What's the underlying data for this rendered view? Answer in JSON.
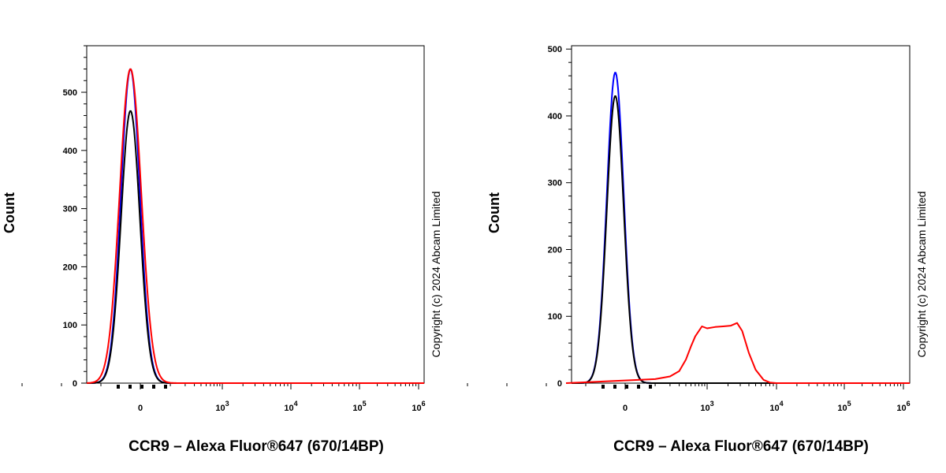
{
  "chart_data": [
    {
      "type": "line",
      "title": "",
      "xlabel": "CCR9 – Alexa Fluor®647 (670/14BP)",
      "ylabel": "Count",
      "x_scale": "biexponential",
      "ylim": [
        0,
        580
      ],
      "y_ticks": [
        0,
        100,
        200,
        300,
        400,
        500
      ],
      "x_ticks": [
        "0",
        "10^3",
        "10^4",
        "10^5",
        "10^6"
      ],
      "grid": false,
      "legend": "none",
      "copyright": "Copyright (c) 2024 Abcam Limited",
      "series": [
        {
          "color": "#0000ff",
          "peak_x": -50,
          "peak_y": 540,
          "width": 0.028
        },
        {
          "color": "#000000",
          "peak_x": -50,
          "peak_y": 468,
          "width": 0.028
        },
        {
          "color": "#ff0000",
          "peak_x": -50,
          "peak_y": 540,
          "width": 0.032
        }
      ]
    },
    {
      "type": "line",
      "title": "",
      "xlabel": "CCR9 – Alexa Fluor®647 (670/14BP)",
      "ylabel": "Count",
      "x_scale": "biexponential",
      "ylim": [
        0,
        505
      ],
      "y_ticks": [
        0,
        100,
        200,
        300,
        400,
        500
      ],
      "x_ticks": [
        "0",
        "10^3",
        "10^4",
        "10^5",
        "10^6"
      ],
      "grid": false,
      "legend": "none",
      "copyright": "Copyright (c) 2024 Abcam Limited",
      "series": [
        {
          "color": "#0000ff",
          "peak_x": -50,
          "peak_y": 465,
          "width": 0.025
        },
        {
          "color": "#000000",
          "peak_x": -50,
          "peak_y": 430,
          "width": 0.025
        },
        {
          "color": "#ff0000",
          "shape": "broad",
          "points": [
            [
              -300,
              0
            ],
            [
              0,
              4
            ],
            [
              100,
              6
            ],
            [
              200,
              10
            ],
            [
              300,
              18
            ],
            [
              400,
              35
            ],
            [
              500,
              55
            ],
            [
              600,
              70
            ],
            [
              800,
              85
            ],
            [
              1000,
              82
            ],
            [
              1300,
              84
            ],
            [
              1700,
              85
            ],
            [
              2200,
              86
            ],
            [
              2700,
              90
            ],
            [
              3200,
              78
            ],
            [
              4000,
              45
            ],
            [
              5000,
              20
            ],
            [
              6500,
              5
            ],
            [
              8000,
              1
            ],
            [
              10000,
              0
            ]
          ]
        }
      ]
    }
  ]
}
